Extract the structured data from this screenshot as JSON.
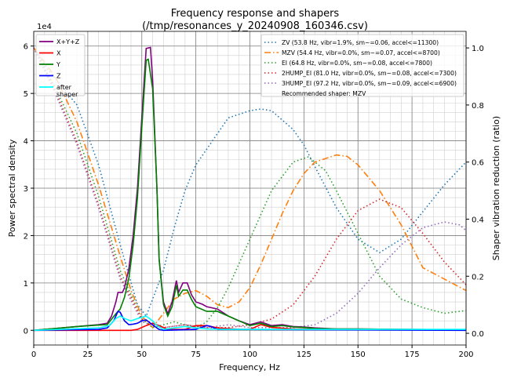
{
  "chart_data": {
    "type": "line",
    "title": "Frequency response and shapers",
    "subtitle": "(/tmp/resonances_y_20240908_160346.csv)",
    "xlabel": "Frequency, Hz",
    "ylabel": "Power spectral density",
    "ylabel_right": "Shaper vibration reduction (ratio)",
    "y_offset_label": "1e4",
    "xlim": [
      0,
      200
    ],
    "ylim": [
      -0.31,
      6.31
    ],
    "ylim_right": [
      -0.041,
      1.058
    ],
    "x_ticks": [
      0,
      25,
      50,
      75,
      100,
      125,
      150,
      175,
      200
    ],
    "y_ticks": [
      0,
      1,
      2,
      3,
      4,
      5,
      6
    ],
    "y_ticks_right": [
      "0.0",
      "0.2",
      "0.4",
      "0.6",
      "0.8",
      "1.0"
    ],
    "grid": true,
    "legend_left_position": "top-left",
    "legend_right_position": "top-right",
    "psd_series": [
      {
        "name": "X+Y+Z",
        "color": "#800080",
        "x": [
          0,
          5,
          10,
          20,
          30,
          34,
          36,
          38,
          39,
          41,
          42,
          44,
          46,
          48,
          50,
          52,
          54,
          55,
          57,
          58,
          60,
          62,
          64,
          66,
          67,
          69,
          71,
          73,
          75,
          78,
          80,
          85,
          90,
          95,
          100,
          105,
          110,
          115,
          120,
          125,
          130,
          140,
          150,
          170,
          200
        ],
        "y": [
          0,
          0.02,
          0.04,
          0.08,
          0.12,
          0.15,
          0.3,
          0.6,
          0.8,
          0.8,
          0.9,
          1.3,
          2.0,
          3.0,
          4.5,
          5.95,
          5.97,
          5.3,
          3.0,
          1.5,
          0.6,
          0.35,
          0.6,
          1.05,
          0.8,
          1.0,
          1.0,
          0.75,
          0.6,
          0.55,
          0.5,
          0.45,
          0.3,
          0.2,
          0.12,
          0.18,
          0.1,
          0.12,
          0.08,
          0.07,
          0.05,
          0.03,
          0.03,
          0.02,
          0.01
        ]
      },
      {
        "name": "X",
        "color": "#ff0000",
        "x": [
          0,
          45,
          48,
          52,
          55,
          58,
          62,
          70,
          75,
          80,
          85,
          95,
          100,
          105,
          110,
          120,
          200
        ],
        "y": [
          0,
          0,
          0.02,
          0.1,
          0.15,
          0.1,
          0.02,
          0.02,
          0.1,
          0.1,
          0.05,
          0.02,
          0.02,
          0.12,
          0.06,
          0.03,
          0.01
        ]
      },
      {
        "name": "Y",
        "color": "#008000",
        "x": [
          0,
          5,
          10,
          20,
          30,
          34,
          38,
          40,
          42,
          44,
          46,
          48,
          50,
          52,
          53,
          55,
          57,
          58,
          60,
          62,
          64,
          66,
          67,
          69,
          71,
          73,
          75,
          80,
          85,
          90,
          95,
          100,
          105,
          110,
          115,
          120,
          125,
          130,
          140,
          150,
          170,
          200
        ],
        "y": [
          0,
          0.02,
          0.04,
          0.08,
          0.11,
          0.12,
          0.35,
          0.45,
          0.7,
          1.1,
          1.8,
          2.8,
          4.3,
          5.7,
          5.72,
          5.1,
          3.0,
          1.5,
          0.55,
          0.3,
          0.5,
          0.95,
          0.72,
          0.85,
          0.85,
          0.65,
          0.5,
          0.4,
          0.4,
          0.3,
          0.2,
          0.1,
          0.15,
          0.08,
          0.1,
          0.07,
          0.06,
          0.04,
          0.03,
          0.03,
          0.02,
          0.01
        ]
      },
      {
        "name": "Z",
        "color": "#0000ff",
        "x": [
          0,
          30,
          34,
          37,
          39,
          40,
          42,
          44,
          46,
          48,
          50,
          52,
          54,
          56,
          58,
          60,
          75,
          80,
          82,
          85,
          200
        ],
        "y": [
          0,
          0.02,
          0.05,
          0.2,
          0.4,
          0.38,
          0.2,
          0.12,
          0.13,
          0.15,
          0.2,
          0.22,
          0.15,
          0.08,
          0.02,
          0,
          0.02,
          0.1,
          0.08,
          0.02,
          0
        ]
      },
      {
        "name": "after\nshaper",
        "color": "#00ffff",
        "x": [
          0,
          30,
          35,
          38,
          40,
          42,
          45,
          48,
          52,
          55,
          57,
          60,
          65,
          70,
          75,
          80,
          90,
          200
        ],
        "y": [
          0,
          0.05,
          0.1,
          0.25,
          0.3,
          0.25,
          0.2,
          0.25,
          0.3,
          0.2,
          0.1,
          0.02,
          0.05,
          0.08,
          0.05,
          0.03,
          0.02,
          0.02
        ]
      }
    ],
    "shaper_series": [
      {
        "name": "ZV (53.8 Hz, vibr=1.9%, sm~=0.06, accel<=11300)",
        "color": "#1f77b4",
        "x": [
          0,
          6,
          20,
          30,
          40,
          48,
          52,
          60,
          65,
          70,
          75,
          80,
          90,
          100,
          105,
          110,
          120,
          125,
          130,
          140,
          150,
          160,
          170,
          180,
          190,
          200
        ],
        "y": [
          1.0,
          0.93,
          0.8,
          0.59,
          0.31,
          0.1,
          0.06,
          0.22,
          0.37,
          0.5,
          0.59,
          0.645,
          0.755,
          0.78,
          0.786,
          0.78,
          0.714,
          0.66,
          0.585,
          0.44,
          0.33,
          0.283,
          0.33,
          0.426,
          0.52,
          0.6
        ]
      },
      {
        "name": "MZV (54.4 Hz, vibr=0.0%, sm~=0.07, accel<=8700)",
        "color": "#ff7f0e",
        "x": [
          0,
          10,
          20,
          30,
          40,
          45,
          50,
          55,
          60,
          65,
          70,
          75,
          80,
          85,
          90,
          95,
          100,
          105,
          110,
          115,
          120,
          125,
          130,
          140,
          145,
          150,
          160,
          170,
          180,
          190,
          200
        ],
        "y": [
          1.0,
          0.9,
          0.74,
          0.52,
          0.27,
          0.15,
          0.06,
          0.02,
          0.07,
          0.12,
          0.14,
          0.15,
          0.13,
          0.1,
          0.09,
          0.11,
          0.16,
          0.24,
          0.33,
          0.42,
          0.5,
          0.56,
          0.6,
          0.625,
          0.62,
          0.59,
          0.5,
          0.38,
          0.23,
          0.19,
          0.15
        ]
      },
      {
        "name": "EI (64.8 Hz, vibr=0.0%, sm~=0.08, accel<=7800)",
        "color": "#2ca02c",
        "x": [
          0,
          10,
          20,
          30,
          40,
          50,
          55,
          60,
          65,
          70,
          75,
          80,
          85,
          90,
          100,
          110,
          120,
          127,
          135,
          140,
          150,
          160,
          170,
          180,
          190,
          200
        ],
        "y": [
          1.0,
          0.86,
          0.7,
          0.48,
          0.22,
          0.05,
          0.02,
          0.03,
          0.04,
          0.03,
          0.02,
          0.04,
          0.09,
          0.16,
          0.33,
          0.5,
          0.6,
          0.618,
          0.57,
          0.5,
          0.35,
          0.2,
          0.12,
          0.09,
          0.07,
          0.08
        ]
      },
      {
        "name": "2HUMP_EI (81.0 Hz, vibr=0.0%, sm~=0.08, accel<=7300)",
        "color": "#d62728",
        "x": [
          0,
          10,
          20,
          30,
          40,
          50,
          60,
          70,
          80,
          90,
          100,
          110,
          120,
          130,
          140,
          150,
          160,
          170,
          180,
          190,
          200
        ],
        "y": [
          1.0,
          0.85,
          0.67,
          0.45,
          0.2,
          0.05,
          0.02,
          0.03,
          0.02,
          0.02,
          0.03,
          0.05,
          0.1,
          0.2,
          0.33,
          0.43,
          0.47,
          0.44,
          0.35,
          0.25,
          0.17
        ]
      },
      {
        "name": "3HUMP_EI (97.2 Hz, vibr=0.0%, sm~=0.09, accel<=6900)",
        "color": "#9467bd",
        "x": [
          0,
          10,
          20,
          30,
          40,
          50,
          60,
          70,
          80,
          90,
          100,
          110,
          120,
          130,
          140,
          150,
          160,
          170,
          180,
          190,
          197,
          200
        ],
        "y": [
          1.0,
          0.84,
          0.66,
          0.44,
          0.19,
          0.04,
          0.02,
          0.03,
          0.02,
          0.03,
          0.02,
          0.02,
          0.02,
          0.03,
          0.07,
          0.14,
          0.23,
          0.31,
          0.37,
          0.39,
          0.38,
          0.36
        ]
      }
    ],
    "recommendation": "Recommended shaper: MZV"
  }
}
